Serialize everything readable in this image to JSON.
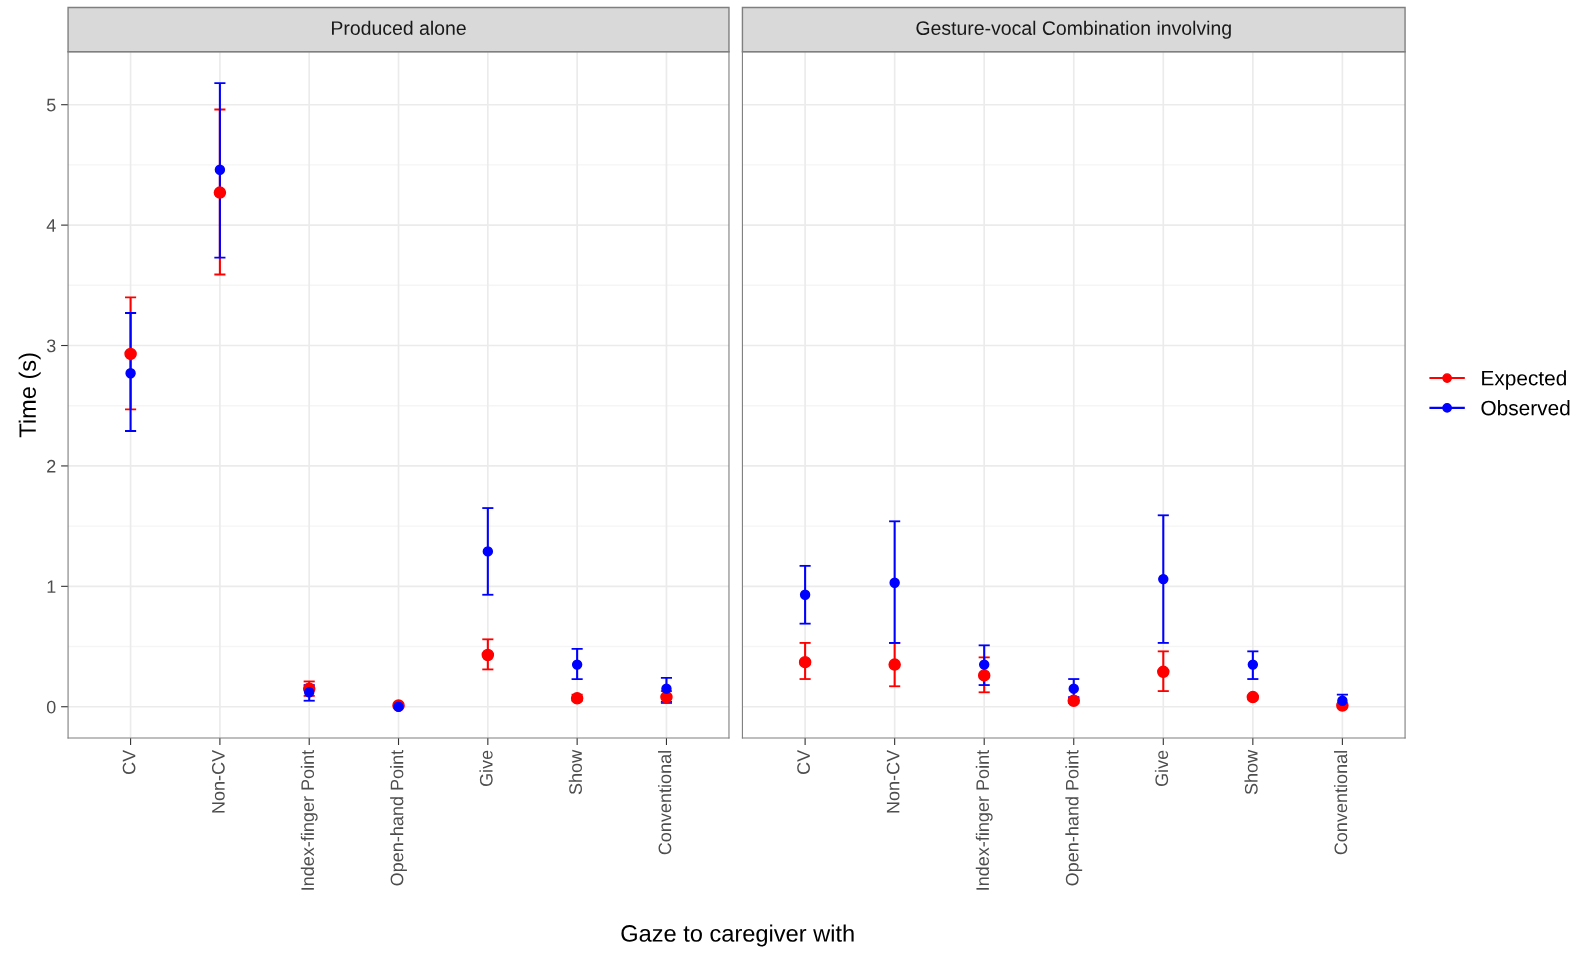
{
  "chart_data": [
    {
      "type": "scatter",
      "title": "Produced alone",
      "ylabel": "Time (s)",
      "xlabel": "Gaze to caregiver with",
      "categories": [
        "CV",
        "Non-CV",
        "Index-finger Point",
        "Open-hand Point",
        "Give",
        "Show",
        "Conventional"
      ],
      "ylim": [
        -0.26,
        5.44
      ],
      "yticks": [
        0,
        1,
        2,
        3,
        4,
        5
      ],
      "grid": true,
      "marker": "circle",
      "series": [
        {
          "color": "#ff0000",
          "values": [
            2.93,
            4.27,
            0.15,
            0.01,
            0.43,
            0.07,
            0.08
          ],
          "errors": [
            [
              2.47,
              3.4
            ],
            [
              3.59,
              4.96
            ],
            [
              0.09,
              0.21
            ],
            [
              0.0,
              0.02
            ],
            [
              0.31,
              0.56
            ],
            [
              0.05,
              0.1
            ],
            [
              0.03,
              0.13
            ]
          ]
        },
        {
          "color": "#0000ff",
          "values": [
            2.77,
            4.46,
            0.12,
            0.0,
            1.29,
            0.35,
            0.15
          ],
          "errors": [
            [
              2.29,
              3.27
            ],
            [
              3.73,
              5.18
            ],
            [
              0.05,
              0.18
            ],
            [
              0.0,
              0.01
            ],
            [
              0.93,
              1.65
            ],
            [
              0.23,
              0.48
            ],
            [
              0.04,
              0.24
            ]
          ]
        }
      ]
    },
    {
      "type": "scatter",
      "title": "Gesture-vocal Combination involving",
      "categories": [
        "CV",
        "Non-CV",
        "Index-finger Point",
        "Open-hand Point",
        "Give",
        "Show",
        "Conventional"
      ],
      "ylim": [
        -0.26,
        5.44
      ],
      "yticks": [
        0,
        1,
        2,
        3,
        4,
        5
      ],
      "tick_labels": "x",
      "grid": true,
      "marker": "circle",
      "legend": "right",
      "series": [
        {
          "name": "Expected",
          "color": "#ff0000",
          "values": [
            0.37,
            0.35,
            0.26,
            0.05,
            0.29,
            0.08,
            0.01
          ],
          "errors": [
            [
              0.23,
              0.53
            ],
            [
              0.17,
              0.53
            ],
            [
              0.12,
              0.41
            ],
            [
              0.03,
              0.07
            ],
            [
              0.13,
              0.46
            ],
            [
              0.06,
              0.09
            ],
            [
              0.0,
              0.02
            ]
          ]
        },
        {
          "name": "Observed",
          "color": "#0000ff",
          "values": [
            0.93,
            1.03,
            0.35,
            0.15,
            1.06,
            0.35,
            0.05
          ],
          "errors": [
            [
              0.69,
              1.17
            ],
            [
              0.53,
              1.54
            ],
            [
              0.18,
              0.51
            ],
            [
              0.08,
              0.23
            ],
            [
              0.53,
              1.59
            ],
            [
              0.23,
              0.46
            ],
            [
              0.02,
              0.1
            ]
          ]
        }
      ]
    }
  ]
}
